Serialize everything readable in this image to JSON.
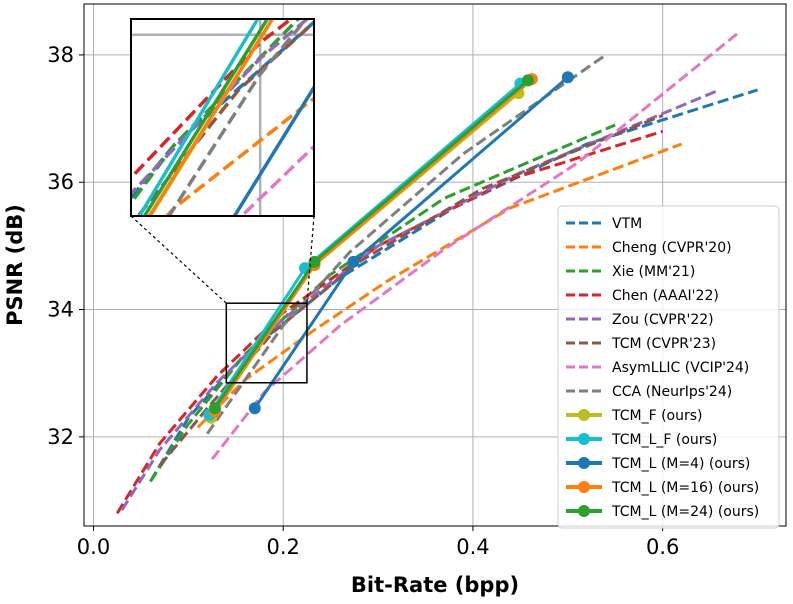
{
  "chart_data": {
    "type": "line",
    "title": "",
    "xlabel": "Bit-Rate (bpp)",
    "ylabel": "PSNR (dB)",
    "xlim": [
      -0.01,
      0.73
    ],
    "ylim": [
      30.6,
      38.8
    ],
    "xticks": [
      0.0,
      0.2,
      0.4,
      0.6
    ],
    "xtick_labels": [
      "0.0",
      "0.2",
      "0.4",
      "0.6"
    ],
    "yticks": [
      32,
      34,
      36,
      38
    ],
    "ytick_labels": [
      "32",
      "34",
      "36",
      "38"
    ],
    "grid": true,
    "legend_position": "lower-right",
    "inset": {
      "xlim": [
        0.14,
        0.225
      ],
      "ylim": [
        32.85,
        34.1
      ],
      "placement": "upper-left"
    },
    "series": [
      {
        "name": "VTM",
        "color": "#1f77b4",
        "style": "dashed",
        "marker": false,
        "x": [
          0.06,
          0.1,
          0.16,
          0.26,
          0.38,
          0.52,
          0.7
        ],
        "y": [
          31.3,
          32.3,
          33.3,
          34.5,
          35.6,
          36.6,
          37.45
        ]
      },
      {
        "name": "Cheng (CVPR'20)",
        "color": "#ff7f0e",
        "style": "dashed",
        "marker": false,
        "x": [
          0.11,
          0.16,
          0.23,
          0.31,
          0.44,
          0.62
        ],
        "y": [
          32.15,
          32.9,
          33.65,
          34.45,
          35.6,
          36.6
        ]
      },
      {
        "name": "Xie (MM'21)",
        "color": "#2ca02c",
        "style": "dashed",
        "marker": false,
        "x": [
          0.06,
          0.1,
          0.16,
          0.25,
          0.37,
          0.55
        ],
        "y": [
          31.3,
          32.2,
          33.3,
          34.55,
          35.75,
          36.9
        ]
      },
      {
        "name": "Chen (AAAI'22)",
        "color": "#d62728",
        "style": "dashed",
        "marker": false,
        "x": [
          0.025,
          0.07,
          0.13,
          0.2,
          0.3,
          0.44,
          0.6
        ],
        "y": [
          30.8,
          31.9,
          32.95,
          33.95,
          35.0,
          36.05,
          36.8
        ]
      },
      {
        "name": "Zou (CVPR'22)",
        "color": "#9467bd",
        "style": "dashed",
        "marker": false,
        "x": [
          0.03,
          0.07,
          0.13,
          0.2,
          0.3,
          0.45,
          0.66
        ],
        "y": [
          30.85,
          31.8,
          32.85,
          33.85,
          35.0,
          36.15,
          37.45
        ]
      },
      {
        "name": "TCM (CVPR'23)",
        "color": "#8c564b",
        "style": "dashed",
        "marker": false,
        "x": [
          0.07,
          0.12,
          0.19,
          0.28,
          0.41,
          0.6
        ],
        "y": [
          31.55,
          32.45,
          33.65,
          34.75,
          35.9,
          37.05
        ]
      },
      {
        "name": "AsymLLIC (VCIP'24)",
        "color": "#e377c2",
        "style": "dashed",
        "marker": false,
        "x": [
          0.125,
          0.18,
          0.26,
          0.37,
          0.51,
          0.68
        ],
        "y": [
          31.65,
          32.7,
          33.75,
          34.95,
          36.3,
          38.35
        ]
      },
      {
        "name": "CCA (NeurIps'24)",
        "color": "#7f7f7f",
        "style": "dashed",
        "marker": false,
        "x": [
          0.12,
          0.2,
          0.27,
          0.39,
          0.54
        ],
        "y": [
          32.05,
          33.75,
          34.9,
          36.45,
          38.0
        ]
      },
      {
        "name": "TCM_F (ours)",
        "color": "#bcbd22",
        "style": "solid",
        "marker": true,
        "x": [
          0.124,
          0.233,
          0.448
        ],
        "y": [
          32.3,
          34.7,
          37.4
        ]
      },
      {
        "name": "TCM_L_F (ours)",
        "color": "#17becf",
        "style": "solid",
        "marker": true,
        "x": [
          0.122,
          0.223,
          0.45
        ],
        "y": [
          32.35,
          34.65,
          37.55
        ]
      },
      {
        "name": "TCM_L (M=4) (ours)",
        "color": "#1f77b4",
        "style": "solid",
        "marker": true,
        "x": [
          0.17,
          0.274,
          0.5
        ],
        "y": [
          32.45,
          34.75,
          37.65
        ]
      },
      {
        "name": "TCM_L (M=16) (ours)",
        "color": "#ff7f0e",
        "style": "solid",
        "marker": true,
        "x": [
          0.128,
          0.233,
          0.462
        ],
        "y": [
          32.4,
          34.7,
          37.62
        ]
      },
      {
        "name": "TCM_L (M=24) (ours)",
        "color": "#2ca02c",
        "style": "solid",
        "marker": true,
        "x": [
          0.128,
          0.233,
          0.458
        ],
        "y": [
          32.45,
          34.75,
          37.6
        ]
      }
    ]
  }
}
